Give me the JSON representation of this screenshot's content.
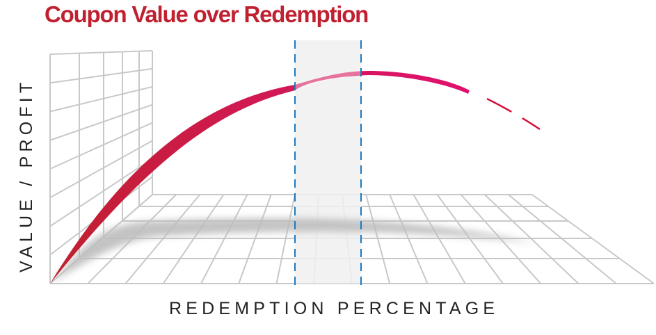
{
  "title": "Coupon Value over Redemption",
  "x_axis_label": "REDEMPTION PERCENTAGE",
  "y_axis_label": "VALUE / PROFIT",
  "colors": {
    "title": "#c0202f",
    "curve_start": "#c0202f",
    "curve_end": "#e0106e",
    "highlight_band": "#f3f3f3",
    "band_edges": "#1a7ac0",
    "grid": "#c8c8c8"
  }
}
